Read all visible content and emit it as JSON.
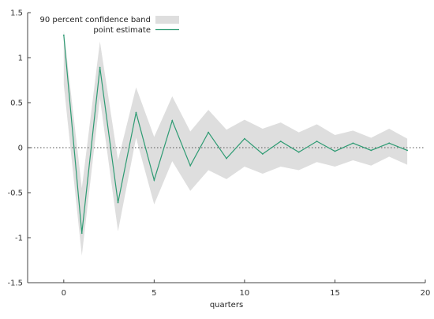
{
  "chart_data": {
    "type": "line",
    "xlabel": "quarters",
    "ylabel": "",
    "xlim": [
      -2,
      20
    ],
    "ylim": [
      -1.5,
      1.5
    ],
    "x_ticks": [
      0,
      5,
      10,
      15,
      20
    ],
    "y_ticks": [
      -1.5,
      -1,
      -0.5,
      0,
      0.5,
      1,
      1.5
    ],
    "x_tick_labels": [
      "0",
      "5",
      "10",
      "15",
      "20"
    ],
    "y_tick_labels": [
      "-1.5",
      "-1",
      "-0.5",
      "0",
      "0.5",
      "1",
      "1.5"
    ],
    "x": [
      0,
      1,
      2,
      3,
      4,
      5,
      6,
      7,
      8,
      9,
      10,
      11,
      12,
      13,
      14,
      15,
      16,
      17,
      18,
      19
    ],
    "series": [
      {
        "name": "point estimate",
        "color": "#2e9b73",
        "values": [
          1.25,
          -0.95,
          0.89,
          -0.61,
          0.39,
          -0.36,
          0.3,
          -0.2,
          0.17,
          -0.12,
          0.1,
          -0.07,
          0.07,
          -0.05,
          0.07,
          -0.04,
          0.05,
          -0.03,
          0.05,
          -0.03
        ]
      }
    ],
    "band": {
      "name": "90 percent confidence band",
      "color": "#dedede",
      "lower": [
        0.7,
        -1.2,
        0.55,
        -0.93,
        0.11,
        -0.63,
        -0.15,
        -0.48,
        -0.25,
        -0.35,
        -0.21,
        -0.29,
        -0.21,
        -0.25,
        -0.16,
        -0.21,
        -0.14,
        -0.2,
        -0.1,
        -0.19
      ],
      "upper": [
        1.3,
        -0.45,
        1.18,
        -0.14,
        0.67,
        0.12,
        0.57,
        0.18,
        0.42,
        0.2,
        0.31,
        0.21,
        0.28,
        0.17,
        0.26,
        0.14,
        0.19,
        0.11,
        0.21,
        0.1
      ]
    },
    "zero_line": true,
    "grid": false,
    "legend_position": "top-right"
  }
}
